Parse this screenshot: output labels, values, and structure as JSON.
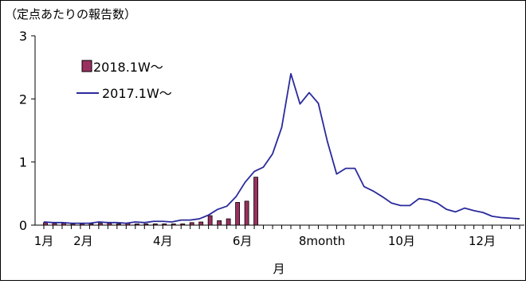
{
  "chart_data": {
    "type": "bar",
    "ylabel": "（定点あたりの報告数）",
    "xlabel": "月",
    "ylim": [
      0,
      3
    ],
    "yticks": [
      0,
      1,
      2,
      3
    ],
    "xlim": [
      1,
      53
    ],
    "month_ticks": [
      {
        "label": "1月",
        "week": 1
      },
      {
        "label": "2月",
        "week": 5.3
      },
      {
        "label": "4月",
        "week": 14
      },
      {
        "label": "6月",
        "week": 22.7
      },
      {
        "label": "8month",
        "week": 31.4
      },
      {
        "label": "10月",
        "week": 40.1
      },
      {
        "label": "12月",
        "week": 48.9
      }
    ],
    "legend_position": "top-left",
    "grid": false,
    "series": [
      {
        "name": "2018.1W～",
        "type": "bar",
        "color": "#9b3060",
        "values": [
          0.04,
          0.03,
          0.03,
          0.02,
          0.02,
          0.02,
          0.03,
          0.03,
          0.02,
          0.03,
          0.02,
          0.02,
          0.02,
          0.02,
          0.02,
          0.02,
          0.04,
          0.05,
          0.15,
          0.07,
          0.1,
          0.36,
          0.38,
          0.76
        ]
      },
      {
        "name": "2017.1W～",
        "type": "line",
        "color": "#2a2a9c",
        "values": [
          0.05,
          0.04,
          0.04,
          0.03,
          0.03,
          0.03,
          0.05,
          0.04,
          0.04,
          0.03,
          0.05,
          0.04,
          0.06,
          0.06,
          0.05,
          0.08,
          0.08,
          0.1,
          0.16,
          0.25,
          0.3,
          0.45,
          0.68,
          0.85,
          0.92,
          1.13,
          1.55,
          2.4,
          1.92,
          2.1,
          1.93,
          1.32,
          0.81,
          0.9,
          0.9,
          0.61,
          0.54,
          0.45,
          0.35,
          0.31,
          0.31,
          0.42,
          0.4,
          0.35,
          0.25,
          0.21,
          0.27,
          0.23,
          0.2,
          0.14,
          0.12,
          0.11,
          0.1
        ]
      }
    ]
  }
}
